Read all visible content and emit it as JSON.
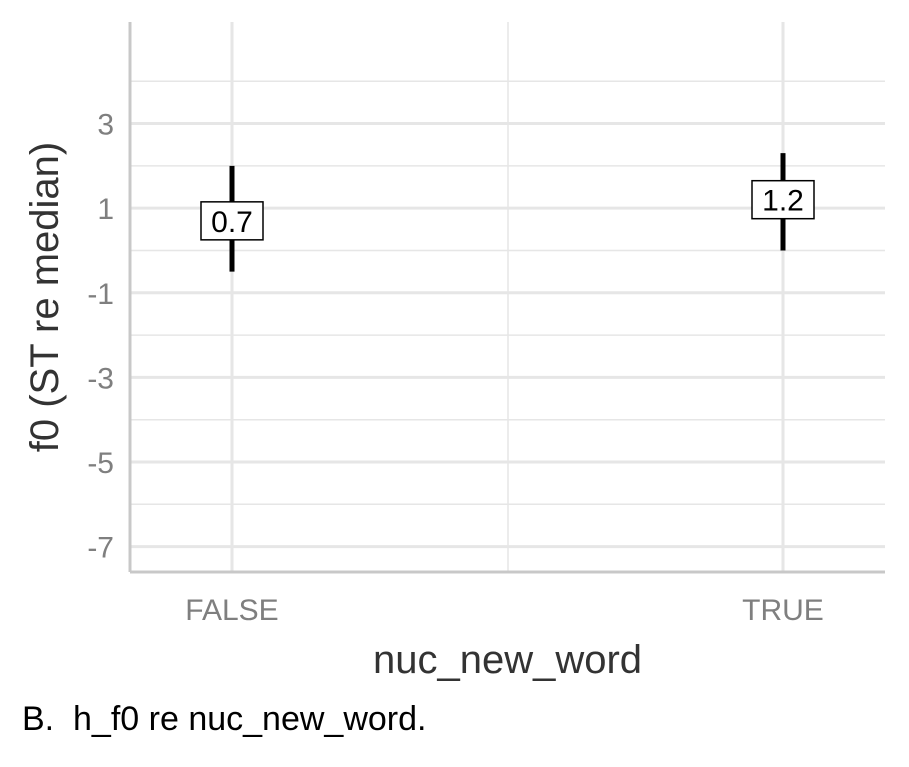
{
  "chart_data": {
    "type": "errorbar",
    "xlabel": "nuc_new_word",
    "ylabel": "f0 (ST re median)",
    "categories": [
      "FALSE",
      "TRUE"
    ],
    "values": [
      0.7,
      1.2
    ],
    "value_labels": [
      "0.7",
      "1.2"
    ],
    "lower": [
      -0.5,
      0.0
    ],
    "upper": [
      2.0,
      2.3
    ],
    "ylim": [
      -7.6,
      5.4
    ],
    "yticks": [
      -7,
      -5,
      -3,
      -1,
      1,
      3
    ],
    "ytick_labels": [
      "-7",
      "-5",
      "-3",
      "-1",
      "1",
      "3"
    ],
    "grid": true,
    "colors": {
      "errorbar": "#000000",
      "grid": "#e6e6e6",
      "axis": "#c8c8c8",
      "tick_label": "#7f7f7f",
      "axis_title": "#333333"
    }
  },
  "caption": "B.  h_f0 re nuc_new_word."
}
